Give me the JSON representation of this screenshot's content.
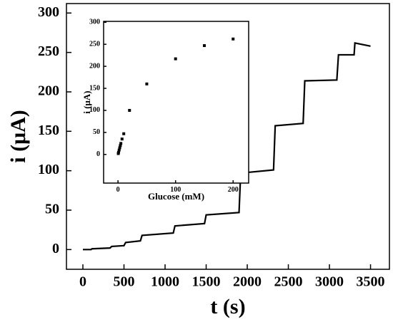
{
  "chart_data": [
    {
      "type": "line",
      "xlabel": "t (s)",
      "ylabel": "i (μA)",
      "color": "#000000",
      "x": [
        0,
        100,
        110,
        330,
        350,
        500,
        520,
        700,
        720,
        1100,
        1120,
        1480,
        1500,
        1900,
        1920,
        2320,
        2340,
        2680,
        2700,
        3090,
        3110,
        3300,
        3310,
        3500
      ],
      "values": [
        0,
        0,
        1,
        2,
        4,
        5,
        9,
        11,
        18,
        21,
        30,
        33,
        44,
        47,
        97,
        101,
        157,
        160,
        214,
        215,
        247,
        247,
        262,
        258
      ],
      "xlim": [
        -200,
        3730
      ],
      "ylim": [
        -25,
        312
      ],
      "xticks": [
        0,
        500,
        1000,
        1500,
        2000,
        2500,
        3000,
        3500
      ],
      "yticks": [
        0,
        50,
        100,
        150,
        200,
        250,
        300
      ]
    },
    {
      "type": "scatter",
      "xlabel": "Glucose (mM)",
      "ylabel": "i (μA)",
      "color": "#000000",
      "x": [
        0.5,
        1,
        2,
        3,
        4,
        5,
        7,
        10,
        20,
        50,
        100,
        150,
        200
      ],
      "values": [
        2,
        5,
        10,
        15,
        20,
        25,
        35,
        47,
        100,
        160,
        217,
        247,
        262
      ],
      "xlim": [
        -25,
        227
      ],
      "ylim": [
        -65,
        302
      ],
      "xticks": [
        0,
        100,
        200
      ],
      "yticks": [
        0,
        50,
        100,
        150,
        200,
        250,
        300
      ]
    }
  ]
}
